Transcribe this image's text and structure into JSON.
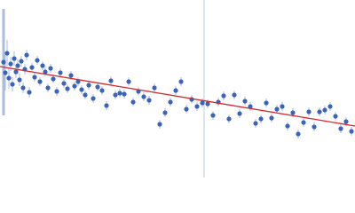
{
  "chart_data": {
    "type": "scatter",
    "xlim": [
      0,
      400
    ],
    "ylim": [
      0,
      200
    ],
    "point_color": "#3b63b8",
    "error_color": "#a9bde2",
    "fit_color": "#d62728",
    "marker_color": "#b9c9e2",
    "marker_x": 230,
    "x": [
      4,
      6,
      8,
      10,
      12,
      14,
      16,
      18,
      20,
      22,
      24,
      26,
      28,
      30,
      33,
      36,
      39,
      42,
      45,
      48,
      51,
      54,
      57,
      60,
      64,
      68,
      72,
      76,
      80,
      84,
      88,
      92,
      96,
      100,
      105,
      110,
      115,
      120,
      125,
      130,
      135,
      140,
      145,
      150,
      156,
      162,
      168,
      174,
      180,
      186,
      192,
      198,
      204,
      210,
      216,
      222,
      228,
      234,
      240,
      246,
      252,
      258,
      264,
      270,
      276,
      282,
      288,
      294,
      300,
      306,
      312,
      318,
      324,
      330,
      336,
      342,
      348,
      354,
      360,
      366,
      372,
      378,
      384,
      390,
      396
    ],
    "values": [
      130,
      118,
      140,
      112,
      128,
      105,
      134,
      119,
      126,
      110,
      131,
      101,
      122,
      138,
      96,
      124,
      113,
      132,
      108,
      126,
      119,
      101,
      123,
      111,
      97,
      118,
      106,
      100,
      115,
      103,
      108,
      99,
      93,
      104,
      89,
      102,
      98,
      81,
      109,
      93,
      95,
      94,
      108,
      85,
      97,
      91,
      87,
      101,
      60,
      73,
      85,
      98,
      108,
      77,
      88,
      80,
      84,
      83,
      70,
      85,
      92,
      66,
      93,
      72,
      86,
      80,
      61,
      66,
      84,
      67,
      77,
      80,
      58,
      73,
      49,
      62,
      74,
      57,
      74,
      76,
      80,
      69,
      55,
      63,
      52
    ],
    "errors": [
      60,
      20,
      15,
      12,
      8,
      8,
      8,
      7,
      7,
      7,
      6,
      6,
      6,
      6,
      6,
      5,
      5,
      5,
      5,
      5,
      5,
      5,
      5,
      5,
      5,
      5,
      5,
      5,
      5,
      5,
      5,
      5,
      5,
      5,
      5,
      5,
      5,
      5,
      5,
      5,
      5,
      5,
      5,
      5,
      5,
      5,
      5,
      5,
      5,
      5,
      5,
      5,
      5,
      5,
      5,
      5,
      5,
      5,
      5,
      5,
      5,
      5,
      5,
      5,
      5,
      5,
      5,
      5,
      5,
      5,
      5,
      5,
      5,
      5,
      5,
      5,
      5,
      5,
      5,
      5,
      5,
      5,
      5,
      5,
      5
    ],
    "fit_x": [
      0,
      400
    ],
    "fit_values": [
      125,
      58
    ]
  }
}
